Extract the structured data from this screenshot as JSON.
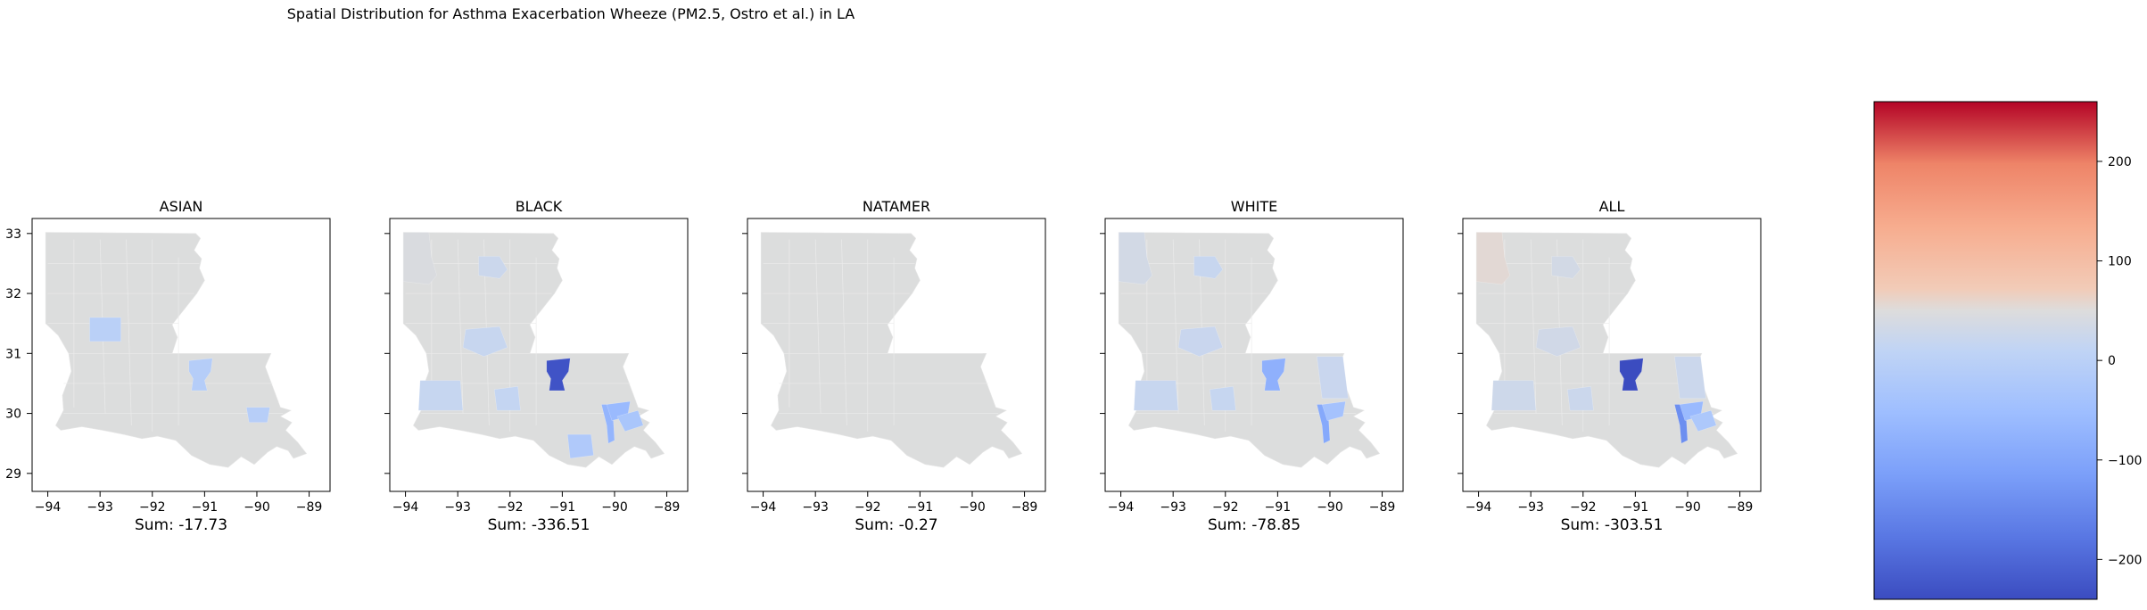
{
  "figure": {
    "title": "Spatial Distribution for Asthma Exacerbation  Wheeze (PM2.5, Ostro et al.) in LA"
  },
  "chart_data": {
    "type": "choropleth",
    "panels": [
      {
        "title": "ASIAN",
        "sum_label": "Sum: -17.73",
        "sum": -17.73,
        "parishes": [
          {
            "region": "baton-rouge",
            "value": -10
          },
          {
            "region": "new-orleans",
            "value": -6
          },
          {
            "region": "west",
            "value": -1
          }
        ]
      },
      {
        "title": "BLACK",
        "sum_label": "Sum: -336.51",
        "sum": -336.51,
        "parishes": [
          {
            "region": "caddo",
            "value": 45
          },
          {
            "region": "ouachita",
            "value": 25
          },
          {
            "region": "rapides",
            "value": 20
          },
          {
            "region": "calcasieu",
            "value": 18
          },
          {
            "region": "lafayette",
            "value": 15
          },
          {
            "region": "baton-rouge",
            "value": -230
          },
          {
            "region": "jefferson",
            "value": -70
          },
          {
            "region": "orleans",
            "value": -60
          },
          {
            "region": "st-bernard",
            "value": -30
          },
          {
            "region": "terrebonne",
            "value": -20
          }
        ]
      },
      {
        "title": "NATAMER",
        "sum_label": "Sum: -0.27",
        "sum": -0.27,
        "parishes": []
      },
      {
        "title": "WHITE",
        "sum_label": "Sum: -78.85",
        "sum": -78.85,
        "parishes": [
          {
            "region": "caddo",
            "value": 35
          },
          {
            "region": "ouachita",
            "value": 20
          },
          {
            "region": "rapides",
            "value": 22
          },
          {
            "region": "calcasieu",
            "value": 20
          },
          {
            "region": "lafayette",
            "value": 18
          },
          {
            "region": "st-tammany",
            "value": 22
          },
          {
            "region": "baton-rouge",
            "value": -80
          },
          {
            "region": "jefferson",
            "value": -95
          },
          {
            "region": "orleans",
            "value": -40
          }
        ]
      },
      {
        "title": "ALL",
        "sum_label": "Sum: -303.51",
        "sum": -303.51,
        "parishes": [
          {
            "region": "caddo",
            "value": 55
          },
          {
            "region": "ouachita",
            "value": 35
          },
          {
            "region": "rapides",
            "value": 32
          },
          {
            "region": "calcasieu",
            "value": 28
          },
          {
            "region": "lafayette",
            "value": 25
          },
          {
            "region": "st-tammany",
            "value": 25
          },
          {
            "region": "baton-rouge",
            "value": -250
          },
          {
            "region": "jefferson",
            "value": -140
          },
          {
            "region": "orleans",
            "value": -60
          },
          {
            "region": "st-bernard",
            "value": -25
          }
        ]
      }
    ],
    "x_ticks": [
      "−94",
      "−93",
      "−92",
      "−91",
      "−90",
      "−89"
    ],
    "y_ticks": [
      "33",
      "32",
      "31",
      "30",
      "29"
    ],
    "xlim": [
      -94.3,
      -88.6
    ],
    "ylim": [
      28.7,
      33.25
    ],
    "colorbar": {
      "colormap": "coolwarm",
      "vmin": -240,
      "vmax": 260,
      "ticks": [
        "200",
        "100",
        "0",
        "−100",
        "−200"
      ],
      "tick_values": [
        200,
        100,
        0,
        -100,
        -200
      ]
    },
    "no_data_color": "#dcdddd"
  }
}
